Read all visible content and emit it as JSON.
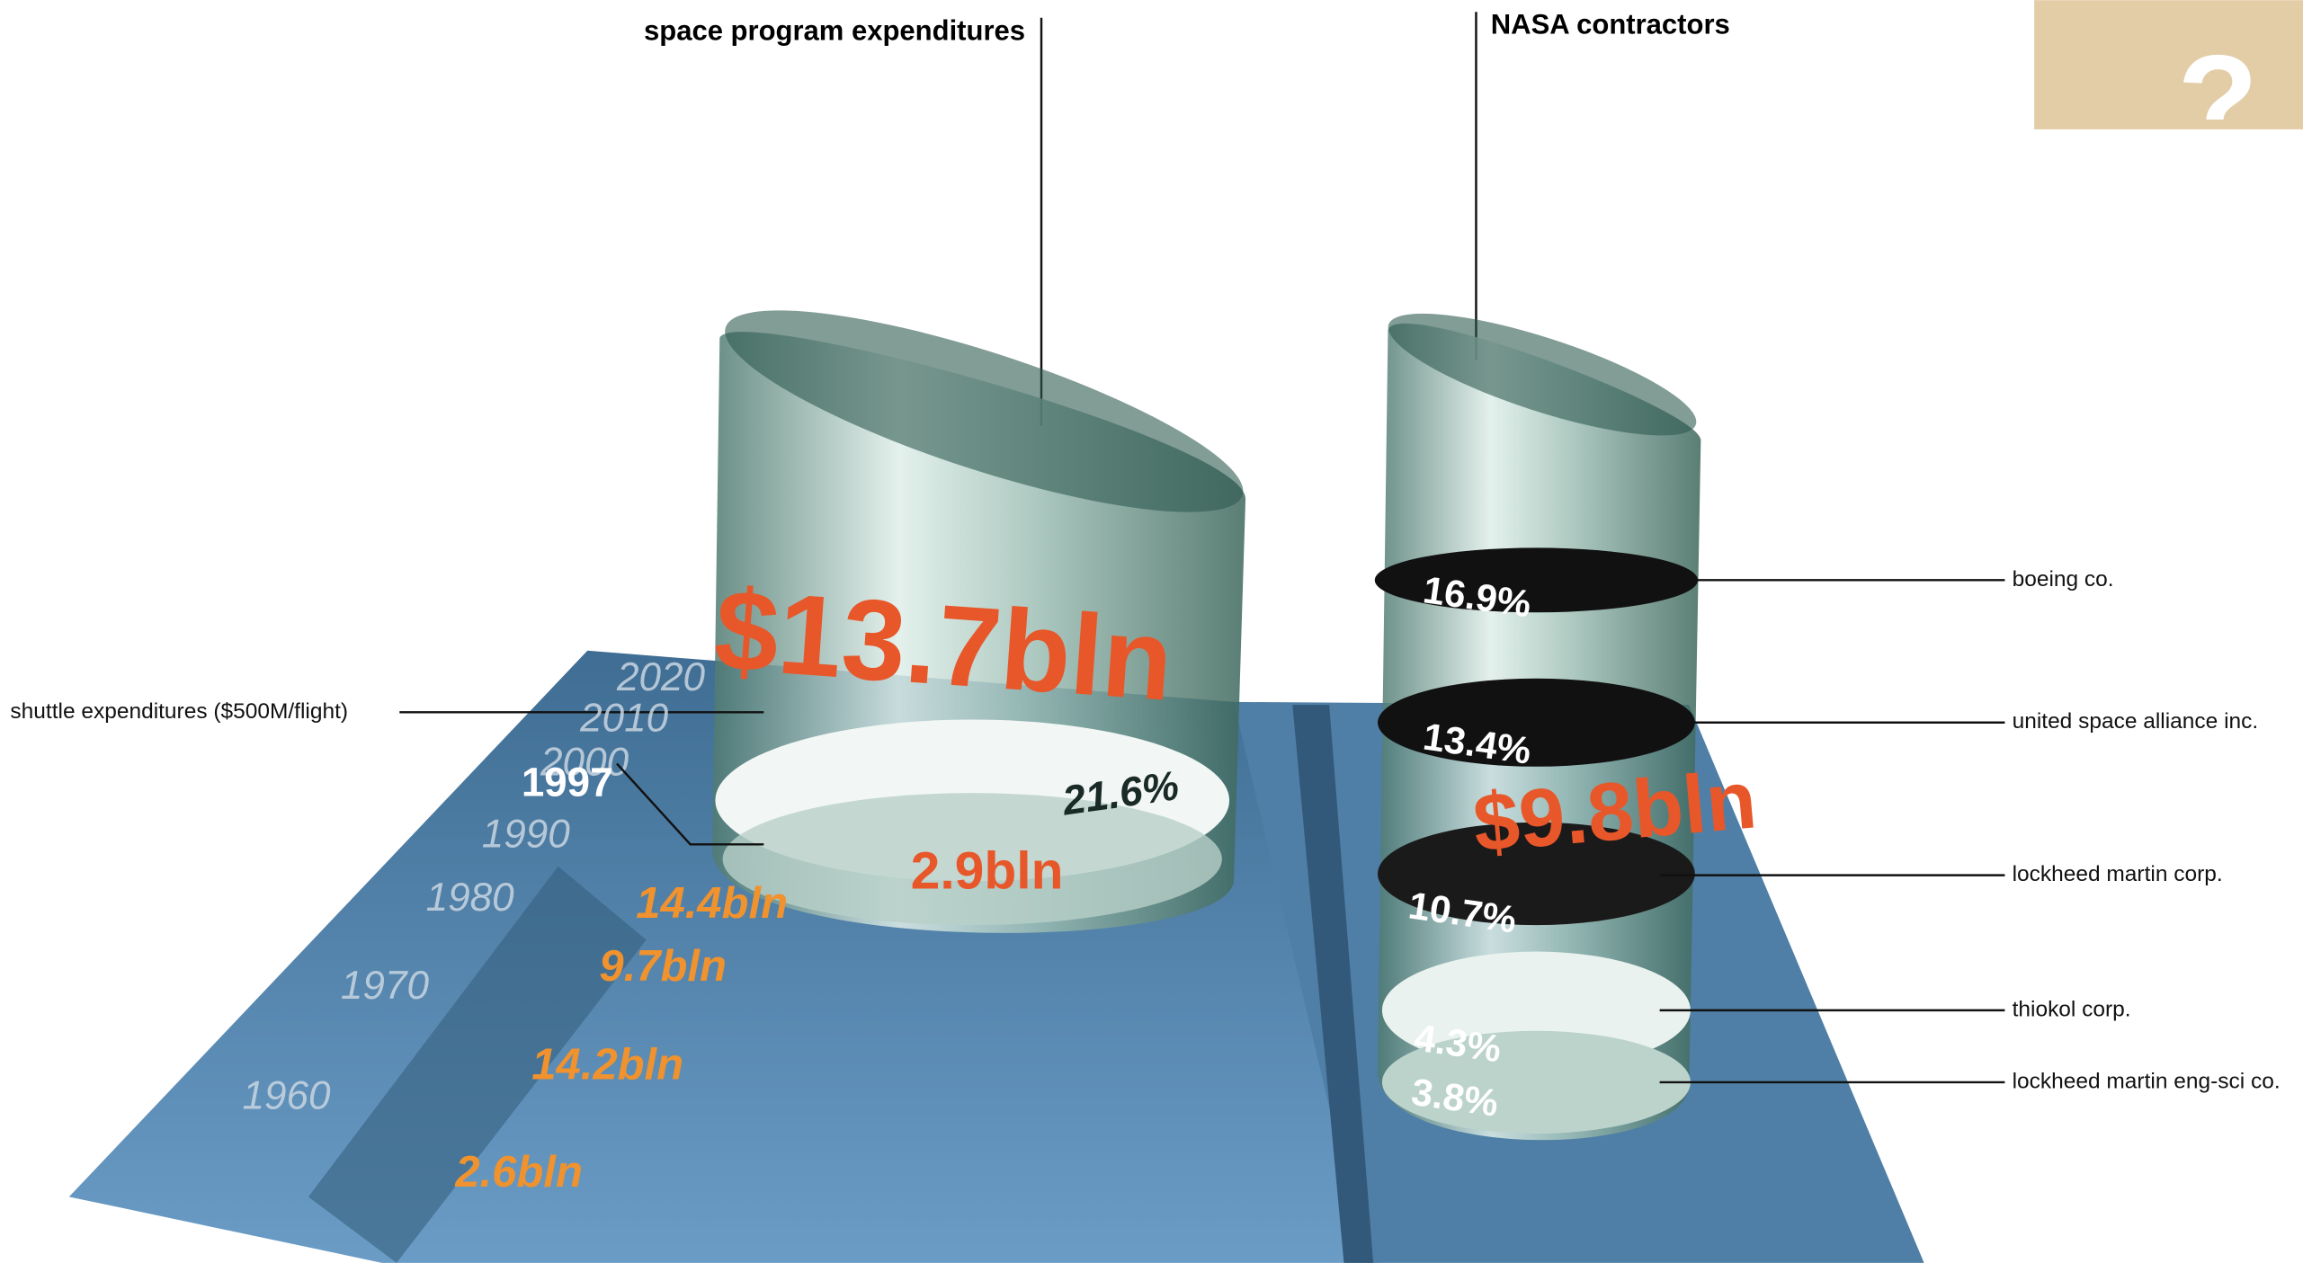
{
  "titles": {
    "expenditures": "space program expenditures",
    "contractors": "NASA contractors"
  },
  "help": "?",
  "annotation": "shuttle expenditures ($500M/flight)",
  "program": {
    "total": "$13.7bln",
    "shuttle_share": "21.6%",
    "shuttle_cost": "2.9bln"
  },
  "timeline": {
    "years": [
      "2020",
      "2010",
      "2000",
      "1997",
      "1990",
      "1980",
      "1970",
      "1960"
    ],
    "values": [
      "14.4bln",
      "9.7bln",
      "14.2bln",
      "2.6bln"
    ]
  },
  "contractors": {
    "total": "$9.8bln",
    "items": [
      {
        "name": "boeing co.",
        "share": "16.9%"
      },
      {
        "name": "united space alliance inc.",
        "share": "13.4%"
      },
      {
        "name": "lockheed martin corp.",
        "share": "10.7%"
      },
      {
        "name": "thiokol corp.",
        "share": "4.3%"
      },
      {
        "name": "lockheed martin eng-sci co.",
        "share": "3.8%"
      }
    ]
  }
}
